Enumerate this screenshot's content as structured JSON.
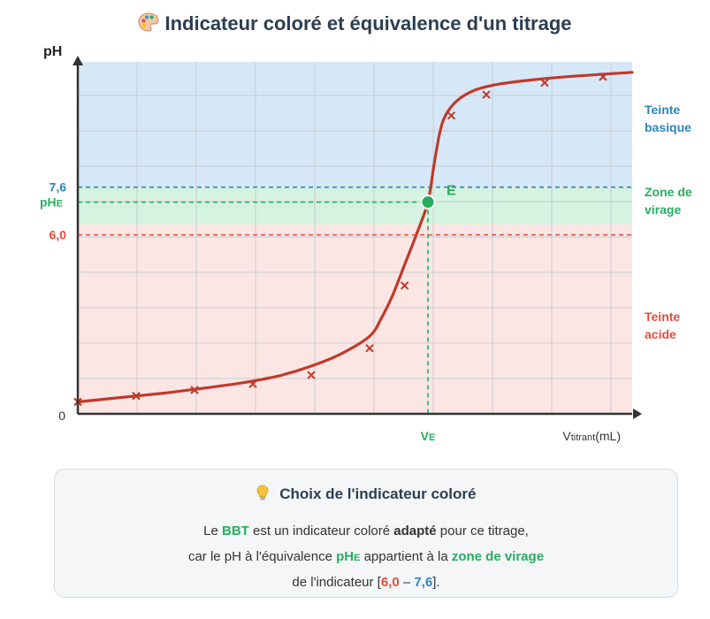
{
  "title": "Indicateur coloré et équivalence d'un titrage",
  "chart_data": {
    "type": "line",
    "ylabel": "pH",
    "xlabel_main": "V",
    "xlabel_sub": "titrant",
    "xlabel_unit": "(mL)",
    "y_origin_label": "0",
    "y_ticks": [
      {
        "label": "7,6",
        "value": 7.6,
        "color": "#2e86c1"
      },
      {
        "label": "6,0",
        "value": 6.0,
        "color": "#e74c3c"
      }
    ],
    "phE_label": {
      "main": "pH",
      "sub": "E"
    },
    "ve_label": {
      "main": "V",
      "sub": "E"
    },
    "equivalence_point": {
      "label": "E",
      "x": 6,
      "y": 7.1
    },
    "zones": [
      {
        "name": "Teinte basique",
        "lines": [
          "Teinte",
          "basique"
        ],
        "from": 7.6,
        "to": 11.8,
        "color": "#2e86c1",
        "fill": "#d6e8f7"
      },
      {
        "name": "Zone de virage",
        "lines": [
          "Zone de",
          "virage"
        ],
        "from": 6.0,
        "to": 7.6,
        "color": "#27ae60",
        "fill": "#d5f3e1"
      },
      {
        "name": "Teinte acide",
        "lines": [
          "Teinte",
          "acide"
        ],
        "from": 0,
        "to": 6.0,
        "color": "#e74c3c",
        "fill": "#fbe6e4"
      }
    ],
    "curve": {
      "x": [
        0,
        0.5,
        1,
        1.5,
        2,
        2.5,
        3,
        3.5,
        4,
        4.5,
        5,
        5.2,
        5.4,
        5.6,
        5.8,
        6.0,
        6.1,
        6.2,
        6.3,
        6.5,
        6.8,
        7.2,
        7.8,
        8.5,
        9.5
      ],
      "y": [
        0.4,
        0.5,
        0.6,
        0.7,
        0.82,
        0.95,
        1.1,
        1.3,
        1.6,
        2.0,
        2.6,
        3.2,
        4.0,
        5.0,
        6.0,
        7.1,
        8.3,
        9.4,
        10.0,
        10.5,
        10.85,
        11.05,
        11.2,
        11.32,
        11.45
      ],
      "color": "#c0392b"
    },
    "points": {
      "x": [
        0,
        1,
        2,
        3,
        4,
        5,
        5.6,
        6.4,
        7,
        8,
        9
      ],
      "y": [
        0.4,
        0.6,
        0.8,
        1.0,
        1.3,
        2.2,
        4.3,
        10.0,
        10.7,
        11.1,
        11.3
      ],
      "color": "#c0392b"
    },
    "xlim": [
      0,
      9.5
    ],
    "ylim": [
      0,
      11.8
    ],
    "grid": true
  },
  "card": {
    "title": "Choix de l'indicateur coloré",
    "line1": {
      "t1": "Le ",
      "bbt": "BBT",
      "t2": " est un indicateur coloré ",
      "adapte": "adapté",
      "t3": " pour ce titrage,"
    },
    "line2": {
      "t1": "car le pH à l'équivalence ",
      "ph": "pH",
      "ph_sub": "E",
      "t2": " appartient à la ",
      "zone": "zone de virage"
    },
    "line3": {
      "t1": "de l'indicateur [",
      "low": "6,0",
      "dash": " – ",
      "high": "7,6",
      "t2": "]."
    }
  }
}
